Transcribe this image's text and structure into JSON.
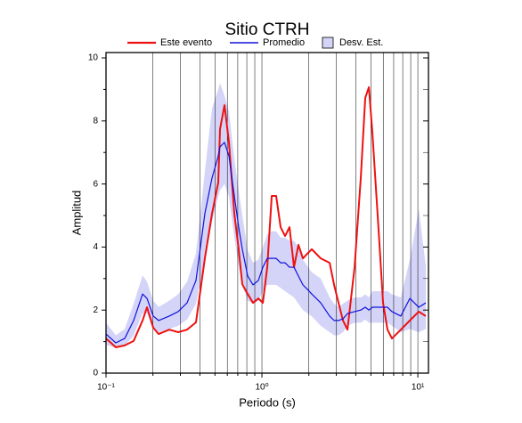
{
  "chart_data": {
    "type": "line",
    "title": "Sitio CTRH",
    "xlabel": "Periodo (s)",
    "ylabel": "Amplitud",
    "xscale": "log",
    "xlim": [
      0.1,
      11.7
    ],
    "ylim": [
      0,
      10.17
    ],
    "xticks": [
      {
        "value": 0.1,
        "label": "10⁻¹"
      },
      {
        "value": 1,
        "label": "10⁰"
      },
      {
        "value": 10,
        "label": "10¹"
      }
    ],
    "xminor": [
      0.2,
      0.3,
      0.4,
      0.5,
      0.6,
      0.7,
      0.8,
      0.9,
      2,
      3,
      4,
      5,
      6,
      7,
      8,
      9
    ],
    "yticks": [
      0,
      2,
      4,
      6,
      8,
      10
    ],
    "yminor": [
      1,
      3,
      5,
      7,
      9
    ],
    "grid": true,
    "x": [
      0.1,
      0.1156,
      0.1318,
      0.1504,
      0.1716,
      0.1832,
      0.2009,
      0.2175,
      0.2545,
      0.2902,
      0.3311,
      0.3776,
      0.4306,
      0.4786,
      0.5248,
      0.5387,
      0.5754,
      0.6146,
      0.6653,
      0.7096,
      0.7482,
      0.8106,
      0.877,
      0.949,
      1.014,
      1.082,
      1.156,
      1.234,
      1.318,
      1.408,
      1.503,
      1.606,
      1.715,
      1.832,
      1.955,
      2.089,
      2.383,
      2.718,
      2.904,
      3.1,
      3.311,
      3.538,
      3.929,
      4.306,
      4.6,
      4.853,
      5.116,
      5.61,
      5.984,
      6.39,
      6.825,
      7.78,
      8.89,
      10.14,
      11.25
    ],
    "series": [
      {
        "name": "Este evento",
        "color": "#ee1111",
        "width": 2,
        "values": [
          1.1,
          0.82,
          0.88,
          1.02,
          1.67,
          2.09,
          1.44,
          1.24,
          1.38,
          1.3,
          1.38,
          1.61,
          3.64,
          5.06,
          6.05,
          7.74,
          8.5,
          7.32,
          5.06,
          3.93,
          2.82,
          2.51,
          2.23,
          2.37,
          2.23,
          3.36,
          5.62,
          5.62,
          4.63,
          4.35,
          4.63,
          3.36,
          4.07,
          3.64,
          3.79,
          3.93,
          3.64,
          3.5,
          2.8,
          2.23,
          1.67,
          1.38,
          3.36,
          6.19,
          8.73,
          9.07,
          7.6,
          4.49,
          2.23,
          1.38,
          1.1,
          1.38,
          1.67,
          1.95,
          1.81
        ]
      },
      {
        "name": "Promedio",
        "color": "#1111dd",
        "width": 1.2,
        "values": [
          1.24,
          0.96,
          1.1,
          1.67,
          2.51,
          2.37,
          1.81,
          1.67,
          1.81,
          1.95,
          2.23,
          2.94,
          5.06,
          6.19,
          6.89,
          7.18,
          7.32,
          6.89,
          5.62,
          4.63,
          3.93,
          3.08,
          2.8,
          2.94,
          3.36,
          3.64,
          3.64,
          3.64,
          3.5,
          3.5,
          3.36,
          3.36,
          3.08,
          2.8,
          2.66,
          2.51,
          2.23,
          1.81,
          1.67,
          1.67,
          1.72,
          1.89,
          1.95,
          2.0,
          2.09,
          2.0,
          2.09,
          2.09,
          2.09,
          2.09,
          1.95,
          1.81,
          2.37,
          2.09,
          2.23
        ]
      }
    ],
    "band": {
      "name": "Desv. Est.",
      "color": "#d4d4f8",
      "lower": [
        0.9,
        0.8,
        0.85,
        1.2,
        1.9,
        1.9,
        1.4,
        1.3,
        1.4,
        1.5,
        1.7,
        2.2,
        3.6,
        4.8,
        5.6,
        5.8,
        6.0,
        5.6,
        4.3,
        3.4,
        2.8,
        2.3,
        2.2,
        2.3,
        2.6,
        2.8,
        2.8,
        2.8,
        2.7,
        2.6,
        2.5,
        2.4,
        2.2,
        2.0,
        1.9,
        1.8,
        1.5,
        1.3,
        1.2,
        1.2,
        1.3,
        1.5,
        1.6,
        1.6,
        1.7,
        1.6,
        1.6,
        1.6,
        1.6,
        1.6,
        1.5,
        1.3,
        1.4,
        1.3,
        1.4
      ],
      "upper": [
        1.6,
        1.2,
        1.4,
        2.2,
        3.1,
        2.9,
        2.3,
        2.1,
        2.3,
        2.5,
        2.9,
        3.8,
        6.4,
        8.4,
        9.0,
        9.2,
        8.8,
        8.3,
        6.8,
        5.8,
        5.0,
        3.9,
        3.5,
        3.6,
        4.0,
        4.4,
        4.5,
        4.5,
        4.3,
        4.3,
        4.2,
        4.2,
        4.0,
        3.6,
        3.4,
        3.2,
        3.0,
        2.4,
        2.2,
        2.1,
        2.2,
        2.3,
        2.4,
        2.4,
        2.5,
        2.4,
        2.6,
        2.6,
        2.6,
        2.6,
        2.5,
        2.4,
        3.6,
        5.2,
        3.4
      ]
    }
  }
}
